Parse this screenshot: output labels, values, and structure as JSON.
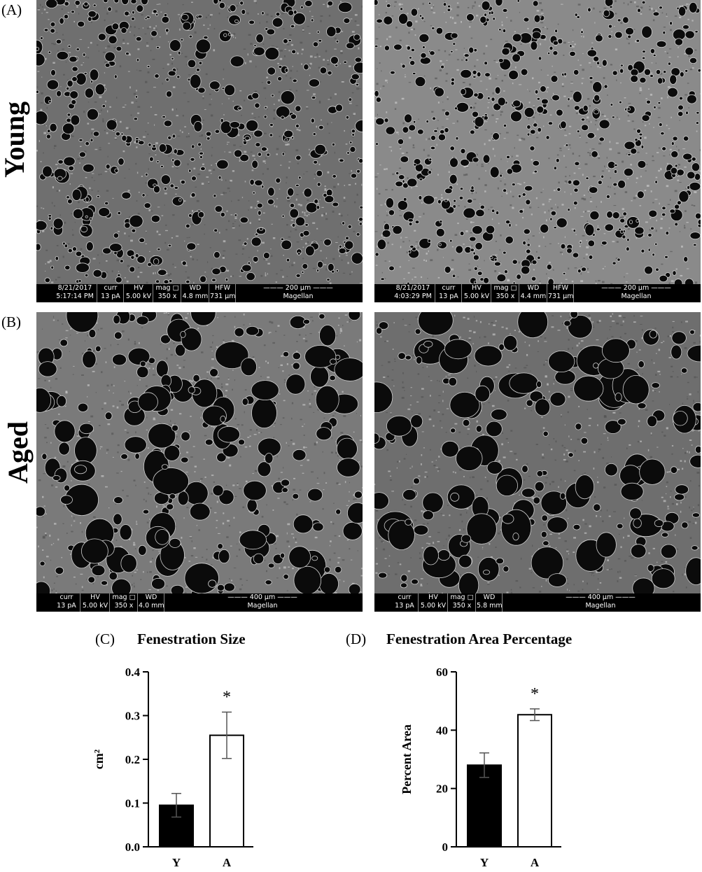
{
  "panels": {
    "A": {
      "letter": "(A)",
      "row_label": "Young"
    },
    "B": {
      "letter": "(B)",
      "row_label": "Aged"
    }
  },
  "sem_images": [
    {
      "id": "young-1",
      "labels": [
        "curr",
        "HV",
        "mag □",
        "WD",
        "HFW"
      ],
      "values": [
        "5:17:14 PM",
        "13 pA",
        "5.00 kV",
        "350 x",
        "4.8 mm",
        "731 µm"
      ],
      "date": "8/21/2017",
      "scale": "200 µm",
      "brand": "Magellan"
    },
    {
      "id": "young-2",
      "labels": [
        "curr",
        "HV",
        "mag □",
        "WD",
        "HFW"
      ],
      "values": [
        "4:03:29 PM",
        "13 pA",
        "5.00 kV",
        "350 x",
        "4.4 mm",
        "731 µm"
      ],
      "date": "8/21/2017",
      "scale": "200 µm",
      "brand": "Magellan"
    },
    {
      "id": "aged-1",
      "labels": [
        "curr",
        "HV",
        "mag □",
        "WD"
      ],
      "values": [
        "13 pA",
        "5.00 kV",
        "350 x",
        "4.0 mm"
      ],
      "scale": "400 µm",
      "brand": "Magellan"
    },
    {
      "id": "aged-2",
      "labels": [
        "curr",
        "HV",
        "mag □",
        "WD"
      ],
      "values": [
        "13 pA",
        "5.00 kV",
        "350 x",
        "5.8 mm"
      ],
      "scale": "400 µm",
      "brand": "Magellan"
    }
  ],
  "charts": {
    "C": {
      "letter": "(C)",
      "title": "Fenestration Size"
    },
    "D": {
      "letter": "(D)",
      "title": "Fenestration Area Percentage"
    }
  },
  "chart_data": [
    {
      "type": "bar",
      "title": "Fenestration Size",
      "categories": [
        "Y",
        "A"
      ],
      "values": [
        0.095,
        0.255
      ],
      "errors": [
        0.027,
        0.053
      ],
      "fills": [
        "#000000",
        "#ffffff"
      ],
      "ylabel": "cm²",
      "ylim": [
        0,
        0.4
      ],
      "yticks": [
        "0.0",
        "0.1",
        "0.2",
        "0.3",
        "0.4"
      ],
      "significance": [
        "",
        "*"
      ]
    },
    {
      "type": "bar",
      "title": "Fenestration Area Percentage",
      "categories": [
        "Y",
        "A"
      ],
      "values": [
        28,
        45.3
      ],
      "errors": [
        4.2,
        2
      ],
      "fills": [
        "#000000",
        "#ffffff"
      ],
      "ylabel": "Percent Area",
      "ylim": [
        0,
        60
      ],
      "yticks": [
        "0",
        "20",
        "40",
        "60"
      ],
      "significance": [
        "",
        "*"
      ]
    }
  ]
}
